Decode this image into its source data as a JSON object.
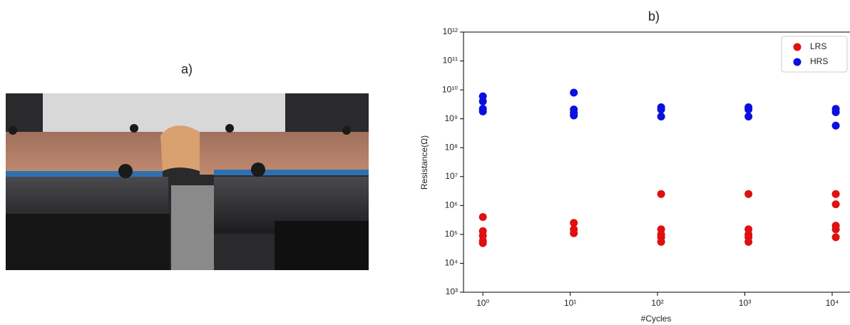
{
  "photo_label": "a)",
  "chart_data": {
    "type": "scatter",
    "title": "b)",
    "x_label": "#Cycles",
    "y_label": "Resistance(Ω)",
    "log_x": true,
    "log_y": true,
    "legend": "upper right",
    "xlim": [
      0.6,
      16000
    ],
    "xticks": [
      {
        "value": 1,
        "label": "10⁰"
      },
      {
        "value": 10,
        "label": "10¹"
      },
      {
        "value": 100,
        "label": "10²"
      },
      {
        "value": 1000,
        "label": "10³"
      },
      {
        "value": 10000,
        "label": "10⁴"
      }
    ],
    "ylim": [
      1000,
      1000000000000
    ],
    "yticks": [
      {
        "value": 1000,
        "label": "10³"
      },
      {
        "value": 10000,
        "label": "10⁴"
      },
      {
        "value": 100000,
        "label": "10⁵"
      },
      {
        "value": 1000000,
        "label": "10⁶"
      },
      {
        "value": 10000000,
        "label": "10⁷"
      },
      {
        "value": 100000000,
        "label": "10⁸"
      },
      {
        "value": 1000000000,
        "label": "10⁹"
      },
      {
        "value": 10000000000,
        "label": "10¹⁰"
      },
      {
        "value": 100000000000,
        "label": "10¹¹"
      },
      {
        "value": 1000000000000,
        "label": "10¹²"
      }
    ],
    "series": [
      {
        "name": "LRS",
        "color": "#e01010",
        "x": [
          1,
          1,
          1,
          1,
          1,
          11,
          11,
          11,
          110,
          110,
          110,
          110,
          110,
          1100,
          1100,
          1100,
          1100,
          1100,
          11000,
          11000,
          11000,
          11000,
          11000
        ],
        "values": [
          400000,
          130000,
          90000,
          60000,
          50000,
          250000,
          150000,
          110000,
          2500000,
          150000,
          100000,
          80000,
          55000,
          2500000,
          150000,
          100000,
          80000,
          55000,
          2500000,
          1100000,
          200000,
          150000,
          80000
        ]
      },
      {
        "name": "HRS",
        "color": "#0a10e0",
        "x": [
          1,
          1,
          1,
          1,
          11,
          11,
          11,
          11,
          110,
          110,
          110,
          1100,
          1100,
          1100,
          11000,
          11000,
          11000
        ],
        "values": [
          6000000000,
          4000000000,
          2200000000,
          1800000000,
          8000000000,
          2100000000,
          1600000000,
          1300000000,
          2500000000,
          2100000000,
          1200000000,
          2500000000,
          2100000000,
          1200000000,
          2200000000,
          1700000000,
          580000000
        ]
      }
    ]
  }
}
